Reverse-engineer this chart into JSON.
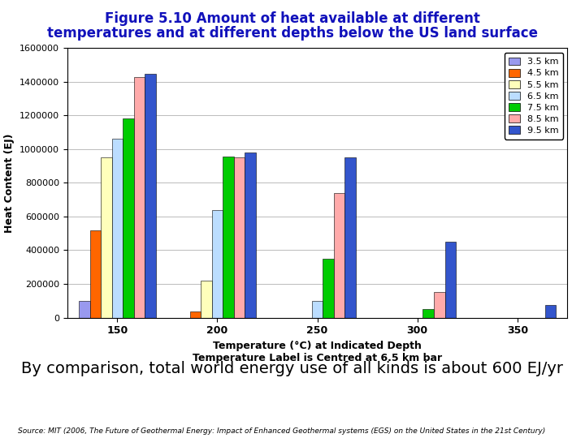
{
  "title_line1": "Figure 5.10 Amount of heat available at different",
  "title_line2": "temperatures and at different depths below the US land surface",
  "title_color": "#1111BB",
  "subtitle": "By comparison, total world energy use of all kinds is about 600 EJ/yr",
  "source_text": "Source: MIT (2006, The Future of Geothermal Energy: Impact of Enhanced Geothermal systems (EGS) on the United States in the 21st Century)",
  "xlabel_line1": "Temperature (°C) at Indicated Depth",
  "xlabel_line2": "Temperature Label is Centred at 6.5 km bar",
  "ylabel": "Heat Content (EJ)",
  "temperatures": [
    150,
    200,
    250,
    300,
    350
  ],
  "depths": [
    "3.5 km",
    "4.5 km",
    "5.5 km",
    "6.5 km",
    "7.5 km",
    "8.5 km",
    "9.5 km"
  ],
  "colors": [
    "#9999EE",
    "#FF6600",
    "#FFFFBB",
    "#BBDDFF",
    "#00CC00",
    "#FFAAAA",
    "#3355CC"
  ],
  "data": {
    "3.5 km": [
      100000,
      0,
      0,
      0,
      0
    ],
    "4.5 km": [
      520000,
      35000,
      0,
      0,
      0
    ],
    "5.5 km": [
      950000,
      220000,
      0,
      0,
      0
    ],
    "6.5 km": [
      1060000,
      640000,
      100000,
      0,
      0
    ],
    "7.5 km": [
      1185000,
      955000,
      350000,
      50000,
      0
    ],
    "8.5 km": [
      1430000,
      950000,
      740000,
      150000,
      0
    ],
    "9.5 km": [
      1450000,
      980000,
      950000,
      450000,
      75000
    ]
  },
  "ylim": [
    0,
    1600000
  ],
  "yticks": [
    0,
    200000,
    400000,
    600000,
    800000,
    1000000,
    1200000,
    1400000,
    1600000
  ],
  "bar_width": 0.11,
  "legend_fontsize": 8,
  "axis_bg": "#FFFFFF",
  "grid_color": "#BBBBBB",
  "title_fontsize": 12,
  "subtitle_fontsize": 14,
  "source_fontsize": 6.5
}
